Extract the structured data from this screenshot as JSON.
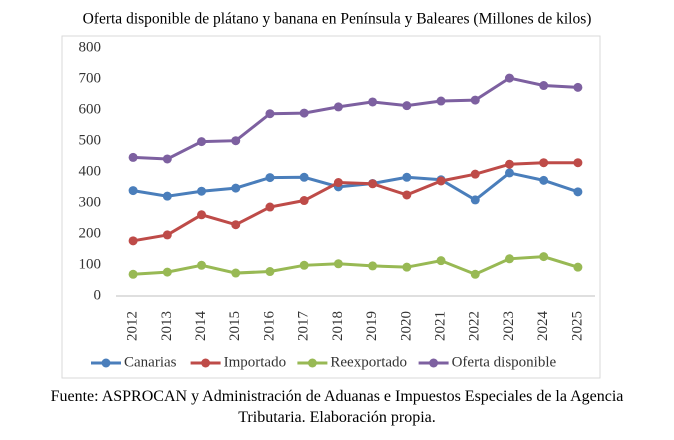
{
  "chart_data": {
    "type": "line",
    "title": "Oferta disponible de plátano y banana en Península y Baleares (Millones de kilos)",
    "categories": [
      "2012",
      "2013",
      "2014",
      "2015",
      "2016",
      "2017",
      "2018",
      "2019",
      "2020",
      "2021",
      "2022",
      "2023",
      "2024",
      "2025"
    ],
    "series": [
      {
        "name": "Canarias",
        "color": "#4a7ebb",
        "values": [
          340,
          322,
          338,
          348,
          382,
          383,
          352,
          363,
          383,
          375,
          310,
          397,
          373,
          336
        ]
      },
      {
        "name": "Importado",
        "color": "#be4b48",
        "values": [
          178,
          197,
          262,
          230,
          287,
          308,
          366,
          362,
          326,
          371,
          393,
          425,
          430,
          430
        ]
      },
      {
        "name": "Reexportado",
        "color": "#98b954",
        "values": [
          70,
          77,
          99,
          74,
          79,
          99,
          104,
          97,
          93,
          114,
          70,
          120,
          127,
          93
        ]
      },
      {
        "name": "Oferta disponible",
        "color": "#7d60a0",
        "values": [
          447,
          442,
          498,
          501,
          588,
          590,
          610,
          626,
          614,
          629,
          632,
          703,
          679,
          673
        ]
      }
    ],
    "ylim": [
      0,
      800
    ],
    "yticks": [
      0,
      100,
      200,
      300,
      400,
      500,
      600,
      700,
      800
    ],
    "grid": false,
    "legend": "bottom",
    "source": "Fuente: ASPROCAN y Administración de Aduanas e Impuestos Especiales de la Agencia Tributaria. Elaboración propia."
  }
}
